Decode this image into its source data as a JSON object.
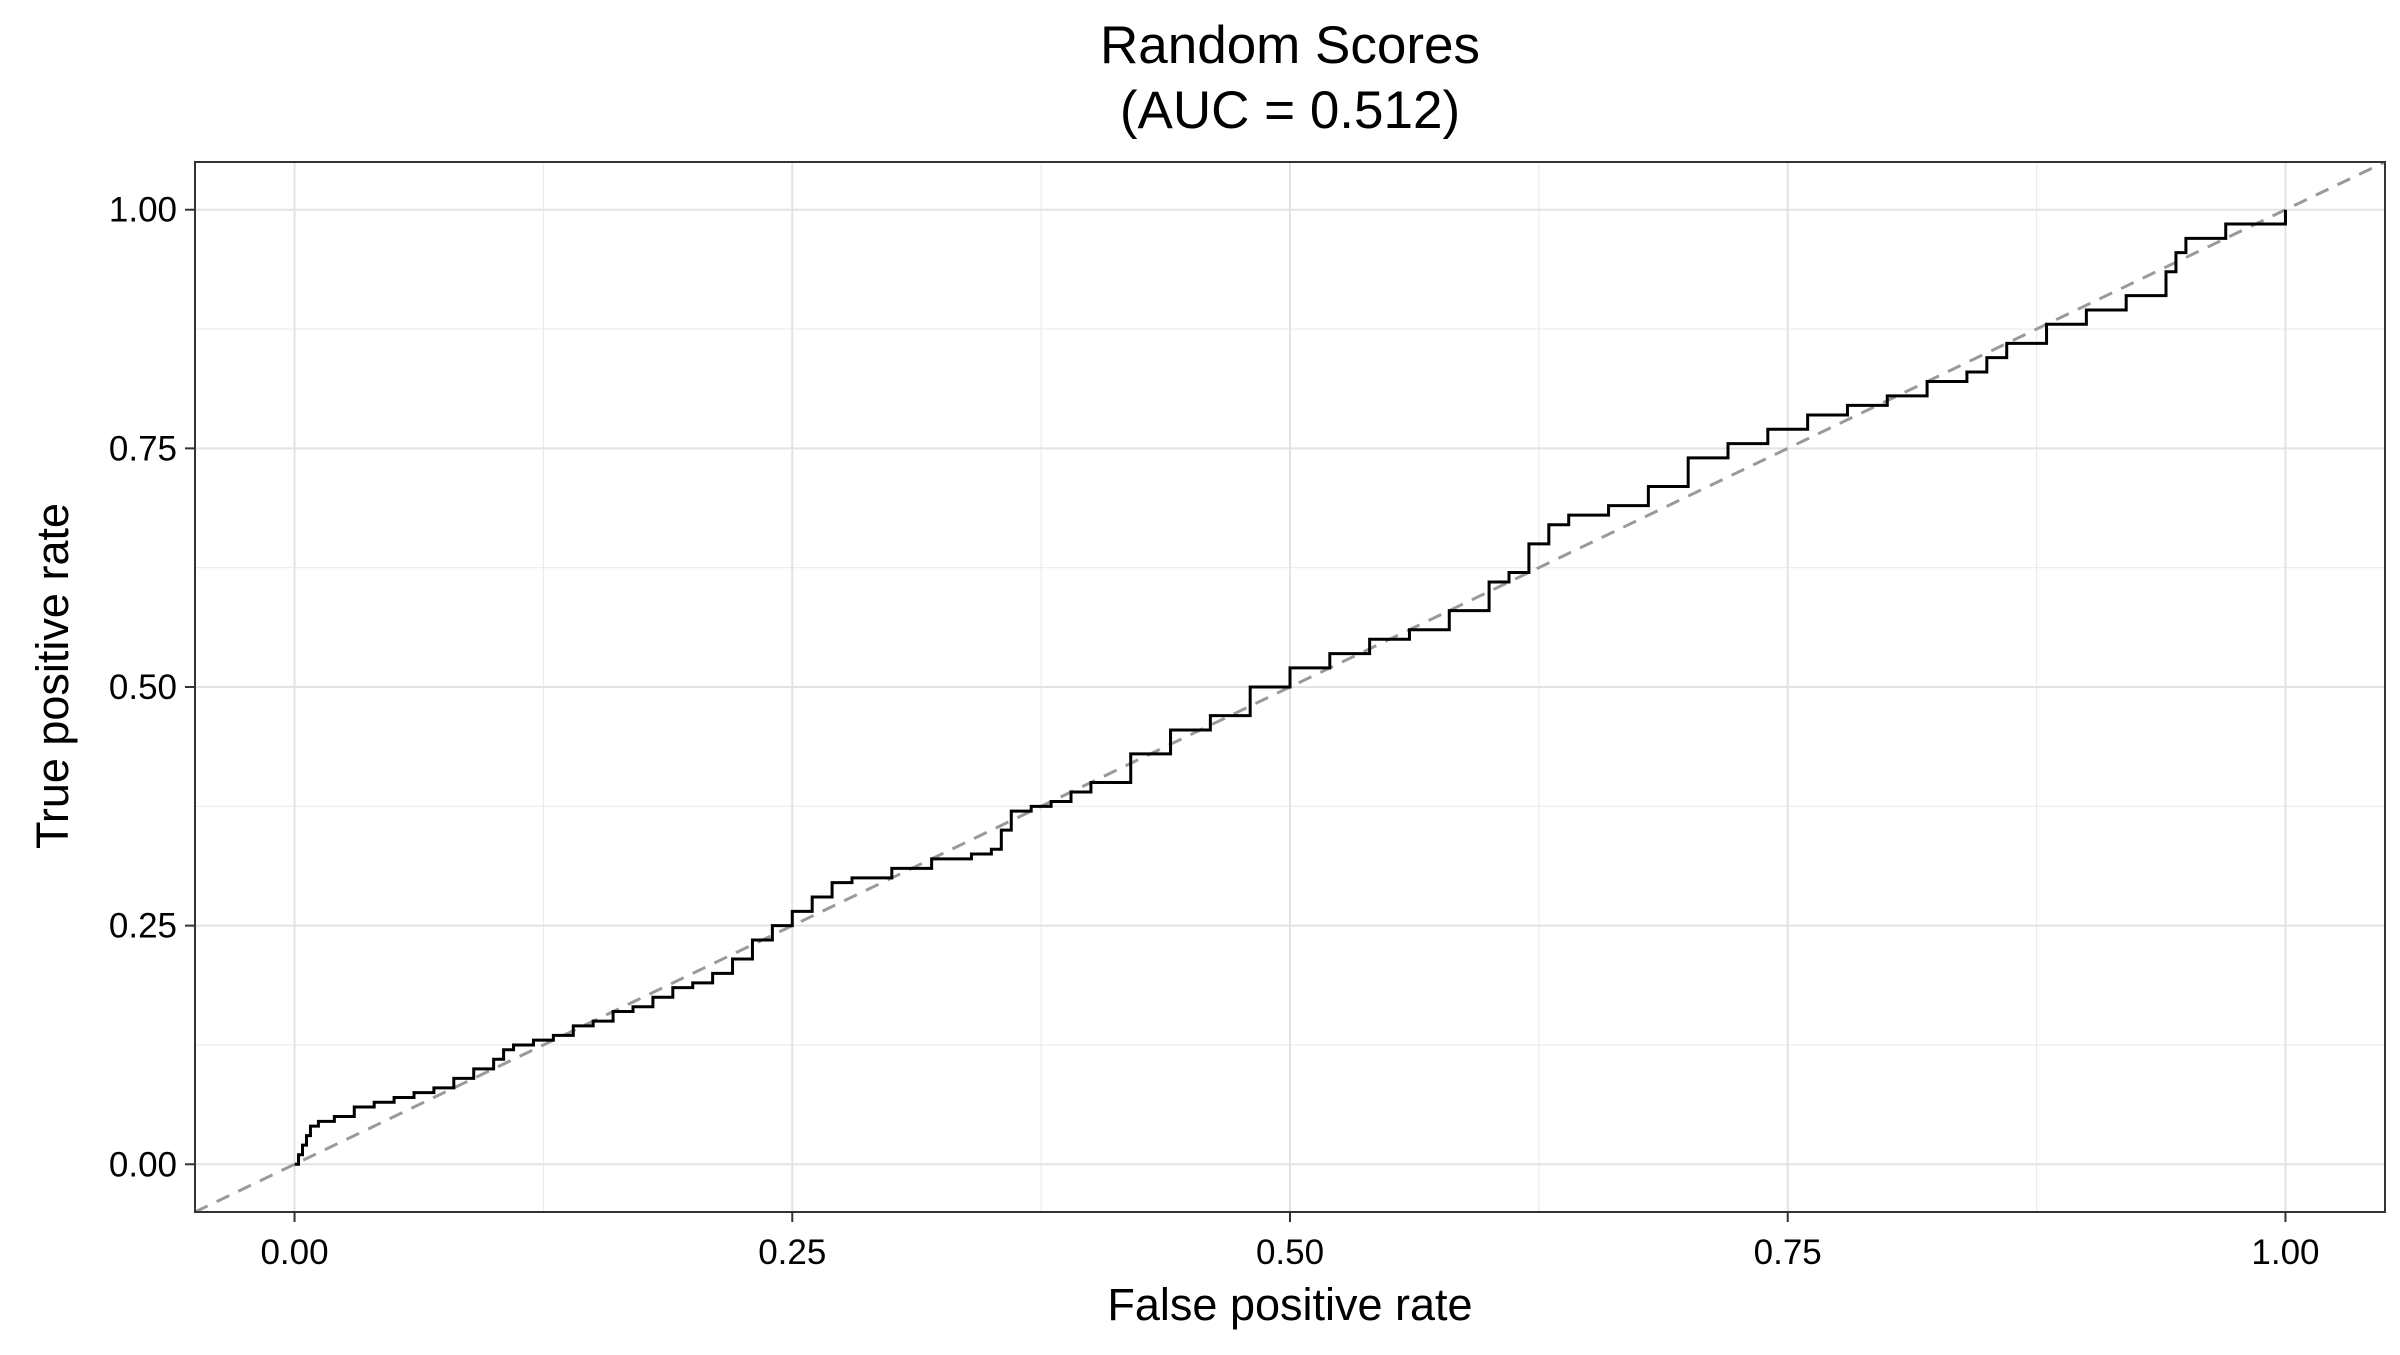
{
  "chart_data": {
    "type": "line",
    "title": "Random Scores",
    "subtitle": "(AUC = 0.512)",
    "xlabel": "False positive rate",
    "ylabel": "True positive rate",
    "xlim": [
      -0.05,
      1.05
    ],
    "ylim": [
      -0.05,
      1.05
    ],
    "x_ticks": [
      0.0,
      0.25,
      0.5,
      0.75,
      1.0
    ],
    "y_ticks": [
      0.0,
      0.25,
      0.5,
      0.75,
      1.0
    ],
    "x_tick_labels": [
      "0.00",
      "0.25",
      "0.50",
      "0.75",
      "1.00"
    ],
    "y_tick_labels": [
      "0.00",
      "0.25",
      "0.50",
      "0.75",
      "1.00"
    ],
    "x_minor_ticks": [
      0.125,
      0.375,
      0.625,
      0.875
    ],
    "y_minor_ticks": [
      0.125,
      0.375,
      0.625,
      0.875
    ],
    "grid": true,
    "legend": "none",
    "colors": {
      "roc": "#000000",
      "reference": "#9a9a9a",
      "grid": "#ebebeb",
      "panel_border": "#333333"
    },
    "reference_line": {
      "style": "dashed",
      "from": [
        -0.05,
        -0.05
      ],
      "to": [
        1.05,
        1.05
      ]
    },
    "series": [
      {
        "line_style": "step",
        "x": [
          0.0,
          0.002,
          0.004,
          0.006,
          0.008,
          0.012,
          0.02,
          0.03,
          0.04,
          0.05,
          0.06,
          0.07,
          0.08,
          0.09,
          0.1,
          0.105,
          0.11,
          0.12,
          0.13,
          0.14,
          0.15,
          0.16,
          0.17,
          0.18,
          0.19,
          0.2,
          0.21,
          0.22,
          0.23,
          0.24,
          0.25,
          0.26,
          0.27,
          0.28,
          0.3,
          0.32,
          0.34,
          0.35,
          0.355,
          0.36,
          0.37,
          0.38,
          0.39,
          0.4,
          0.42,
          0.44,
          0.46,
          0.48,
          0.5,
          0.52,
          0.54,
          0.56,
          0.58,
          0.6,
          0.61,
          0.62,
          0.63,
          0.64,
          0.66,
          0.68,
          0.7,
          0.72,
          0.74,
          0.76,
          0.78,
          0.8,
          0.82,
          0.84,
          0.85,
          0.86,
          0.88,
          0.9,
          0.92,
          0.94,
          0.945,
          0.95,
          0.97,
          1.0
        ],
        "y": [
          0.0,
          0.01,
          0.02,
          0.03,
          0.04,
          0.045,
          0.05,
          0.06,
          0.065,
          0.07,
          0.075,
          0.08,
          0.09,
          0.1,
          0.11,
          0.12,
          0.125,
          0.13,
          0.135,
          0.145,
          0.15,
          0.16,
          0.165,
          0.175,
          0.185,
          0.19,
          0.2,
          0.215,
          0.235,
          0.25,
          0.265,
          0.28,
          0.295,
          0.3,
          0.31,
          0.32,
          0.325,
          0.33,
          0.35,
          0.37,
          0.375,
          0.38,
          0.39,
          0.4,
          0.43,
          0.455,
          0.47,
          0.5,
          0.52,
          0.535,
          0.55,
          0.56,
          0.58,
          0.61,
          0.62,
          0.65,
          0.67,
          0.68,
          0.69,
          0.71,
          0.74,
          0.755,
          0.77,
          0.785,
          0.795,
          0.805,
          0.82,
          0.83,
          0.845,
          0.86,
          0.88,
          0.895,
          0.91,
          0.935,
          0.955,
          0.97,
          0.985,
          1.0
        ]
      }
    ]
  }
}
